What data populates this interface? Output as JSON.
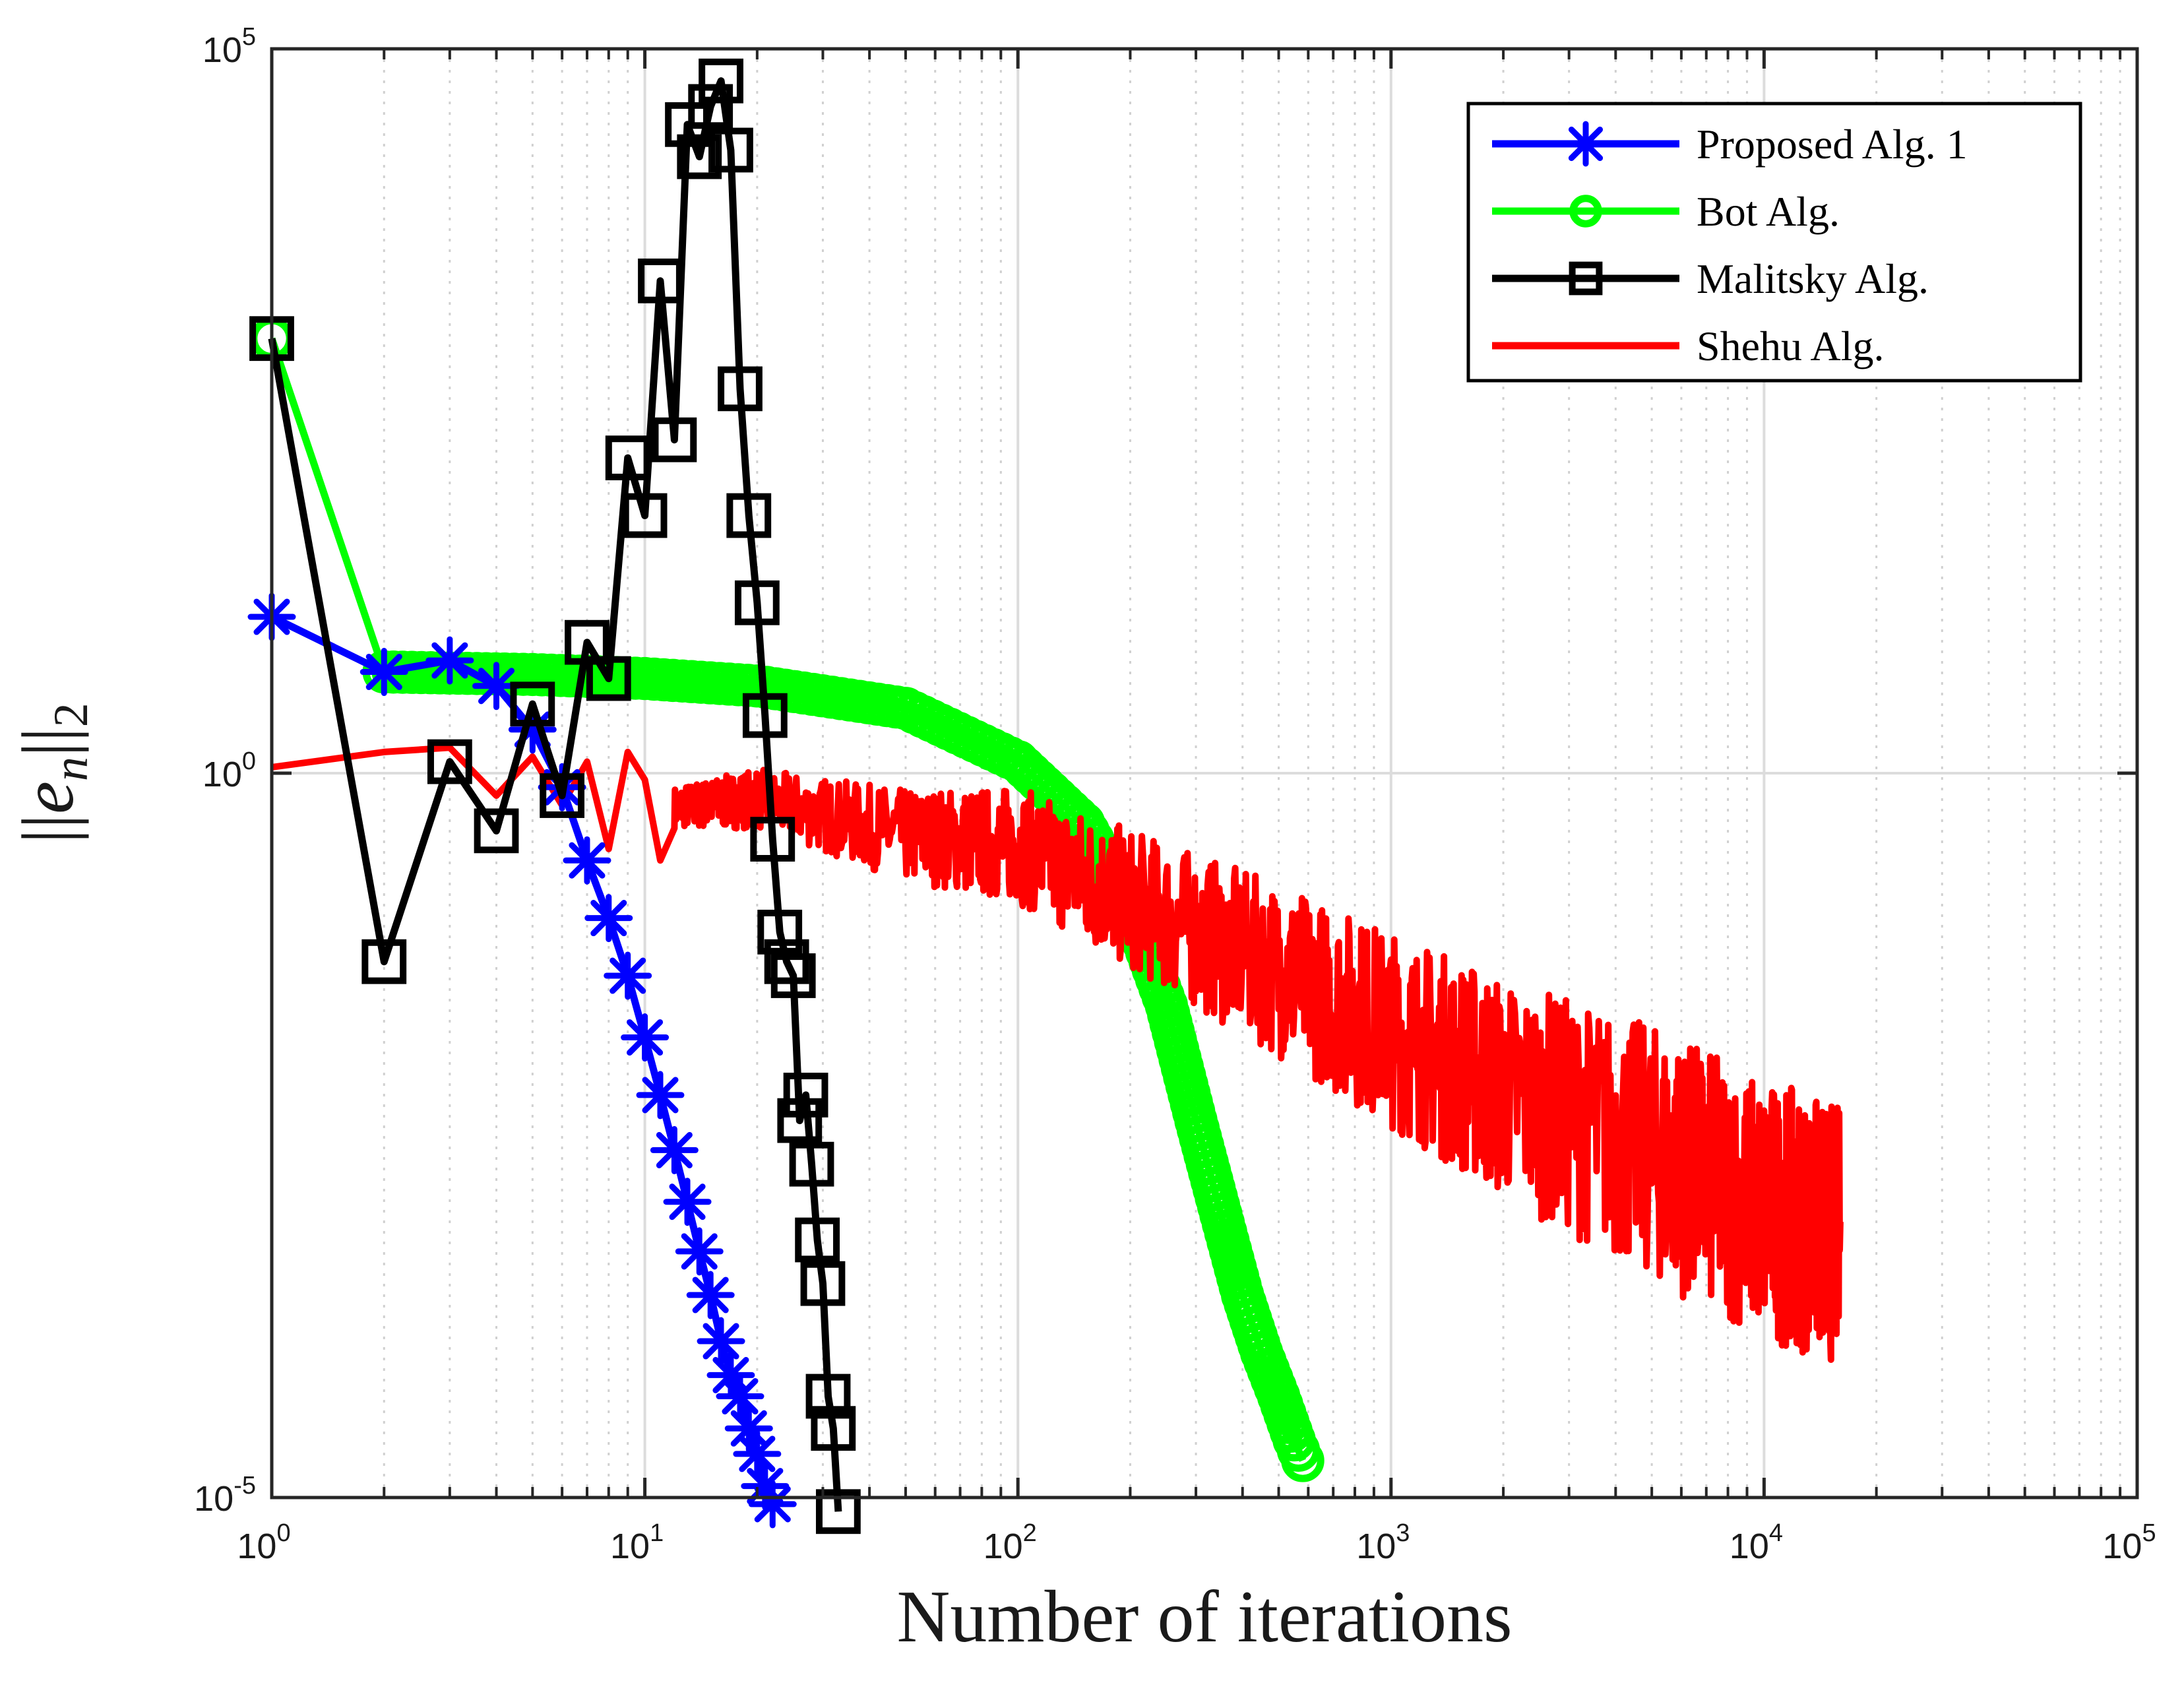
{
  "chart_data": {
    "type": "line",
    "title": "",
    "xlabel": "Number of iterations",
    "ylabel": "||e_n||_2",
    "ylabel_parts": {
      "pipes_open": "||",
      "symbol": "e",
      "subscript": "n",
      "pipes_close": "||",
      "norm_index": "2"
    },
    "x_scale": "log",
    "y_scale": "log",
    "xlim": [
      1,
      100000
    ],
    "ylim": [
      1e-05,
      100000
    ],
    "grid": true,
    "legend_position": "top-right",
    "x_ticks": [
      {
        "base": "10",
        "exp": "0",
        "value": 1
      },
      {
        "base": "10",
        "exp": "1",
        "value": 10
      },
      {
        "base": "10",
        "exp": "2",
        "value": 100
      },
      {
        "base": "10",
        "exp": "3",
        "value": 1000
      },
      {
        "base": "10",
        "exp": "4",
        "value": 10000
      },
      {
        "base": "10",
        "exp": "5",
        "value": 100000
      }
    ],
    "y_ticks": [
      {
        "base": "10",
        "exp": "-5",
        "value": 1e-05
      },
      {
        "base": "10",
        "exp": "0",
        "value": 1
      },
      {
        "base": "10",
        "exp": "5",
        "value": 100000
      }
    ],
    "series": [
      {
        "name": "Proposed Alg. 1",
        "color": "#0000ff",
        "marker": "asterisk",
        "x": [
          1,
          2,
          3,
          4,
          5,
          6,
          7,
          8,
          9,
          10,
          11,
          12,
          13,
          14,
          15,
          16,
          17,
          18,
          19,
          20,
          21,
          22
        ],
        "y": [
          12,
          5,
          6,
          4,
          2,
          0.8,
          0.25,
          0.1,
          0.04,
          0.015,
          0.006,
          0.0025,
          0.0011,
          0.0005,
          0.00025,
          0.00012,
          7e-05,
          5e-05,
          3e-05,
          2e-05,
          1.2e-05,
          9e-06
        ]
      },
      {
        "name": "Bot Alg.",
        "color": "#00ff00",
        "marker": "circle",
        "x": [
          1,
          2,
          5,
          10,
          20,
          50,
          100,
          150,
          200,
          250,
          300,
          350,
          400,
          450,
          500,
          550,
          580
        ],
        "y": [
          1000,
          5,
          4.8,
          4.5,
          4,
          2.8,
          1.2,
          0.45,
          0.12,
          0.025,
          0.004,
          0.0009,
          0.00025,
          0.0001,
          5e-05,
          2.5e-05,
          1.8e-05
        ]
      },
      {
        "name": "Malitsky Alg.",
        "color": "#000000",
        "marker": "square",
        "x": [
          1,
          2,
          3,
          4,
          5,
          6,
          7,
          8,
          9,
          10,
          11,
          12,
          13,
          14,
          15,
          16,
          17,
          18,
          19,
          20,
          21,
          22,
          23,
          24,
          25,
          26,
          27,
          28,
          29,
          30,
          31,
          32,
          33
        ],
        "y": [
          1000,
          0.05,
          1.2,
          0.4,
          3,
          0.7,
          8,
          4.5,
          150,
          60,
          2500,
          200,
          30000,
          18000,
          40000,
          60000,
          20000,
          450,
          60,
          15,
          2.5,
          0.35,
          0.08,
          0.05,
          0.04,
          0.004,
          0.006,
          0.002,
          0.0006,
          0.0003,
          5e-05,
          3e-05,
          8e-06
        ]
      },
      {
        "name": "Shehu Alg.",
        "color": "#ff0000",
        "marker": "none",
        "x": [
          1,
          2,
          3,
          4,
          5,
          6,
          7,
          8,
          9,
          10,
          11,
          12,
          20,
          50,
          100,
          200,
          500,
          1000,
          2000,
          5000,
          10000,
          16000
        ],
        "y": [
          1.1,
          1.4,
          1.5,
          0.7,
          1.3,
          0.6,
          1.2,
          0.3,
          1.4,
          0.9,
          0.25,
          0.6,
          0.7,
          0.4,
          0.35,
          0.15,
          0.05,
          0.02,
          0.008,
          0.003,
          0.0012,
          0.0008
        ],
        "noise_band": [
          0.2,
          5
        ]
      }
    ]
  }
}
